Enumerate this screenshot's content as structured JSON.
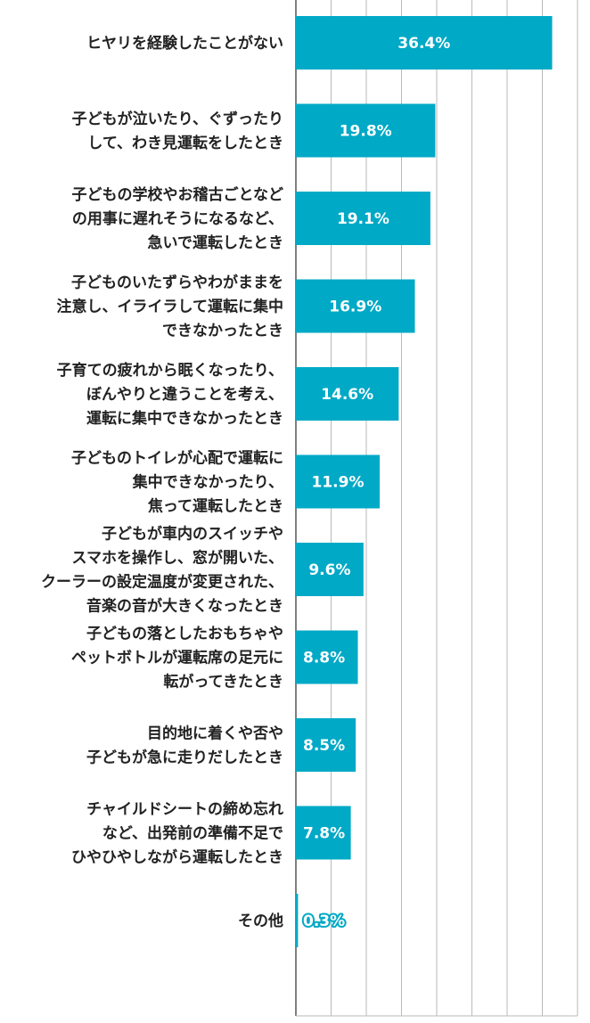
{
  "chart_data": {
    "type": "bar",
    "orientation": "horizontal",
    "unit": "%",
    "xlim": [
      0,
      40
    ],
    "grid": true,
    "bar_color": "#00a9c6",
    "categories": [
      [
        "ヒヤリを経験したことがない"
      ],
      [
        "子どもが泣いたり、ぐずったり",
        "して、わき見運転をしたとき"
      ],
      [
        "子どもの学校やお稽古ごとなど",
        "の用事に遅れそうになるなど、",
        "急いで運転したとき"
      ],
      [
        "子どものいたずらやわがままを",
        "注意し、イライラして運転に集中",
        "できなかったとき"
      ],
      [
        "子育ての疲れから眠くなったり、",
        "ぼんやりと違うことを考え、",
        "運転に集中できなかったとき"
      ],
      [
        "子どものトイレが心配で運転に",
        "集中できなかったり、",
        "焦って運転したとき"
      ],
      [
        "子どもが車内のスイッチや",
        "スマホを操作し、窓が開いた、",
        "クーラーの設定温度が変更された、",
        "音楽の音が大きくなったとき"
      ],
      [
        "子どもの落としたおもちゃや",
        "ペットボトルが運転席の足元に",
        "転がってきたとき"
      ],
      [
        "目的地に着くや否や",
        "子どもが急に走りだしたとき"
      ],
      [
        "チャイルドシートの締め忘れ",
        "など、出発前の準備不足で",
        "ひやひやしながら運転したとき"
      ],
      [
        "その他"
      ]
    ],
    "values": [
      36.4,
      19.8,
      19.1,
      16.9,
      14.6,
      11.9,
      9.6,
      8.8,
      8.5,
      7.8,
      0.3
    ],
    "value_labels": [
      "36.4%",
      "19.8%",
      "19.1%",
      "16.9%",
      "14.6%",
      "11.9%",
      "9.6%",
      "8.8%",
      "8.5%",
      "7.8%",
      "0.3%"
    ]
  }
}
